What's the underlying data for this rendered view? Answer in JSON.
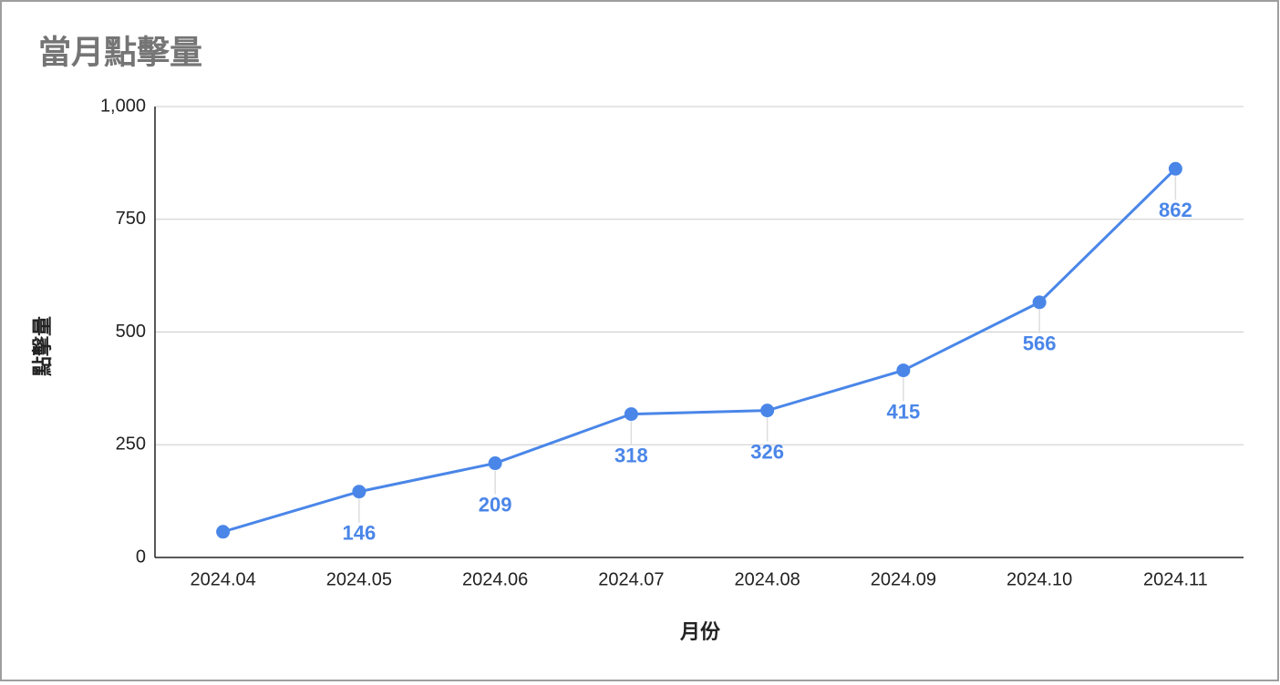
{
  "chart_data": {
    "type": "line",
    "title": "當月點擊量",
    "x_label": "月份",
    "y_label": "點擊量",
    "categories": [
      "2024.04",
      "2024.05",
      "2024.06",
      "2024.07",
      "2024.08",
      "2024.09",
      "2024.10",
      "2024.11"
    ],
    "values": [
      57,
      146,
      209,
      318,
      326,
      415,
      566,
      862
    ],
    "value_labels": [
      null,
      "146",
      "209",
      "318",
      "326",
      "415",
      "566",
      "862"
    ],
    "color": "#4a86e8",
    "ylim": [
      0,
      1000
    ],
    "yticks": [
      0,
      250,
      500,
      750,
      {
        "value": 1000,
        "label": "1,000"
      }
    ],
    "grid": true
  }
}
